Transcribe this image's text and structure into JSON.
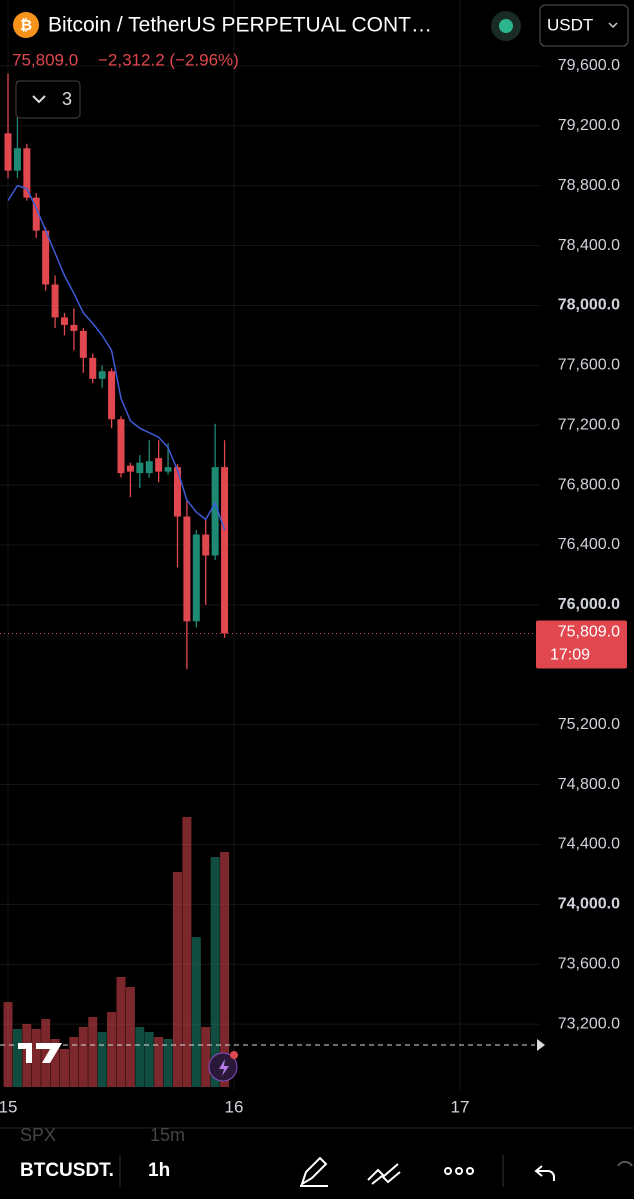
{
  "header": {
    "title": "Bitcoin / TetherUS PERPETUAL CONT…",
    "currency": "USDT",
    "last": "75,809.0",
    "change": "−2,312.2 (−2.96%)",
    "indicators_count": "3"
  },
  "chart_data": {
    "type": "candlestick",
    "x": [
      0,
      1,
      2,
      3,
      4,
      5,
      6,
      7,
      8,
      9,
      10,
      11,
      12,
      13,
      14,
      15,
      16,
      17,
      18,
      19,
      20,
      21,
      22,
      23
    ],
    "open": [
      79150,
      78900,
      79050,
      78720,
      78500,
      78140,
      77920,
      77870,
      77830,
      77650,
      77510,
      77560,
      77240,
      76930,
      76880,
      76880,
      76980,
      76890,
      76920,
      76590,
      75890,
      76470,
      76330,
      76920
    ],
    "high": [
      79550,
      79500,
      79080,
      78750,
      78520,
      78200,
      77950,
      77980,
      77850,
      77680,
      77600,
      77580,
      77260,
      76950,
      77000,
      77100,
      77100,
      77080,
      76940,
      76700,
      76500,
      76580,
      77210,
      77100
    ],
    "low": [
      78850,
      78850,
      78700,
      78450,
      78100,
      77850,
      77800,
      77700,
      77550,
      77480,
      77450,
      77180,
      76850,
      76720,
      76780,
      76850,
      76820,
      76870,
      76250,
      75570,
      75850,
      76000,
      76300,
      75780
    ],
    "close": [
      78900,
      79050,
      78720,
      78500,
      78140,
      77920,
      77870,
      77830,
      77650,
      77510,
      77560,
      77240,
      76880,
      76890,
      76950,
      76960,
      76890,
      76920,
      76590,
      75890,
      76470,
      76330,
      76920,
      75809
    ],
    "volume": [
      85,
      58,
      63,
      58,
      68,
      48,
      38,
      50,
      60,
      70,
      55,
      75,
      110,
      100,
      60,
      55,
      50,
      48,
      215,
      270,
      150,
      60,
      230,
      235
    ],
    "up_color": "#1f8a74",
    "down_color": "#e0474f",
    "ma": {
      "color": "#3f5bd6",
      "values": [
        78700,
        78800,
        78780,
        78650,
        78500,
        78350,
        78200,
        78080,
        77950,
        77880,
        77800,
        77700,
        77380,
        77230,
        77180,
        77150,
        77120,
        77050,
        76900,
        76700,
        76620,
        76570,
        76680,
        76500
      ]
    },
    "xlim": [
      -0.85,
      56.5
    ],
    "xticks": [
      {
        "value": 0,
        "label": "15"
      },
      {
        "value": 24,
        "label": "16"
      },
      {
        "value": 48,
        "label": "17"
      }
    ],
    "ylim": [
      72760,
      80040
    ],
    "yticks": [
      {
        "value": 79600,
        "label": "79,600.0"
      },
      {
        "value": 79200,
        "label": "79,200.0"
      },
      {
        "value": 78800,
        "label": "78,800.0"
      },
      {
        "value": 78400,
        "label": "78,400.0"
      },
      {
        "value": 78000,
        "label": "78,000.0"
      },
      {
        "value": 77600,
        "label": "77,600.0"
      },
      {
        "value": 77200,
        "label": "77,200.0"
      },
      {
        "value": 76800,
        "label": "76,800.0"
      },
      {
        "value": 76400,
        "label": "76,400.0"
      },
      {
        "value": 76000,
        "label": "76,000.0"
      },
      {
        "value": 75200,
        "label": "75,200.0"
      },
      {
        "value": 74800,
        "label": "74,800.0"
      },
      {
        "value": 74400,
        "label": "74,400.0"
      },
      {
        "value": 74000,
        "label": "74,000.0"
      },
      {
        "value": 73600,
        "label": "73,600.0"
      },
      {
        "value": 73200,
        "label": "73,200.0"
      }
    ],
    "grid": true,
    "price_tag": {
      "price": "75,809.0",
      "countdown": "17:09"
    }
  },
  "footer": {
    "ghost_left": "SPX",
    "ghost_right": "15m",
    "symbol": "BTCUSDT.",
    "interval": "1h"
  }
}
